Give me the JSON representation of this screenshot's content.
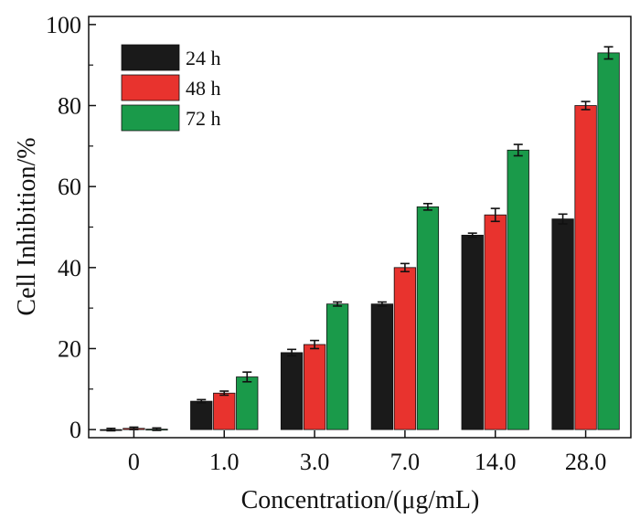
{
  "chart_data": {
    "type": "bar",
    "title": "",
    "xlabel": "Concentration/(μg/mL)",
    "ylabel": "Cell Inhibition/%",
    "categories": [
      "0",
      "1.0",
      "3.0",
      "7.0",
      "14.0",
      "28.0"
    ],
    "ylim": [
      -2,
      102
    ],
    "yticks": [
      0,
      20,
      40,
      60,
      80,
      100
    ],
    "grid": false,
    "legend_position": "top-left",
    "series": [
      {
        "name": "24 h",
        "color": "#1a1a1a",
        "values": [
          0,
          7,
          19,
          31,
          48,
          52
        ],
        "errors": [
          0.3,
          0.4,
          0.8,
          0.5,
          0.5,
          1.2
        ]
      },
      {
        "name": "48 h",
        "color": "#e8332e",
        "values": [
          0.3,
          9,
          21,
          40,
          53,
          80
        ],
        "errors": [
          0.3,
          0.5,
          1.0,
          1.0,
          1.6,
          1.0
        ]
      },
      {
        "name": "72 h",
        "color": "#1a9a4a",
        "values": [
          0.1,
          13,
          31,
          55,
          69,
          93
        ],
        "errors": [
          0.3,
          1.2,
          0.5,
          0.8,
          1.4,
          1.5
        ]
      }
    ]
  }
}
